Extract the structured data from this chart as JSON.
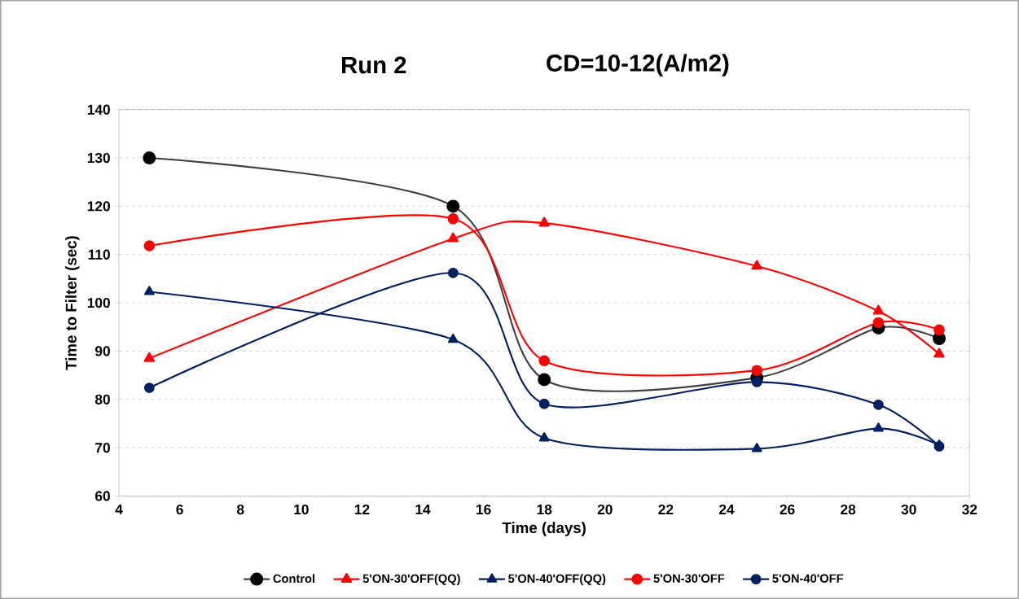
{
  "chart_data": {
    "type": "line",
    "title": "Run 2",
    "subtitle": "CD=10-12(A/m2)",
    "xlabel": "Time (days)",
    "ylabel": "Time to Filter (sec)",
    "x": [
      5,
      15,
      18,
      25,
      29,
      31
    ],
    "xlim": [
      4,
      32
    ],
    "xticks": [
      4,
      6,
      8,
      10,
      12,
      14,
      16,
      18,
      20,
      22,
      24,
      26,
      28,
      30,
      32
    ],
    "ylim": [
      60,
      140
    ],
    "yticks": [
      60,
      70,
      80,
      90,
      100,
      110,
      120,
      130,
      140
    ],
    "grid": "y",
    "legend": "bottom",
    "line_style": "solid",
    "series": [
      {
        "name": "Control",
        "color": "#404040",
        "marker": "circle",
        "values": [
          130,
          120,
          84.1,
          84.5,
          94.8,
          92.6
        ]
      },
      {
        "name": "5'ON-30'OFF(QQ)",
        "color": "#ff0000",
        "marker": "triangle",
        "values": [
          88.5,
          113.3,
          116.5,
          107.6,
          98.3,
          89.4
        ]
      },
      {
        "name": "5'ON-40'OFF(QQ)",
        "color": "#002060",
        "marker": "triangle",
        "values": [
          102.3,
          92.4,
          72.0,
          69.8,
          74.0,
          70.5
        ]
      },
      {
        "name": "5'ON-30'OFF",
        "color": "#ff0000",
        "marker": "circle",
        "values": [
          111.8,
          117.4,
          88.0,
          86.0,
          95.9,
          94.4
        ]
      },
      {
        "name": "5'ON-40'OFF",
        "color": "#002060",
        "marker": "circle",
        "values": [
          82.4,
          106.2,
          79.1,
          83.6,
          78.9,
          70.3
        ]
      }
    ]
  }
}
